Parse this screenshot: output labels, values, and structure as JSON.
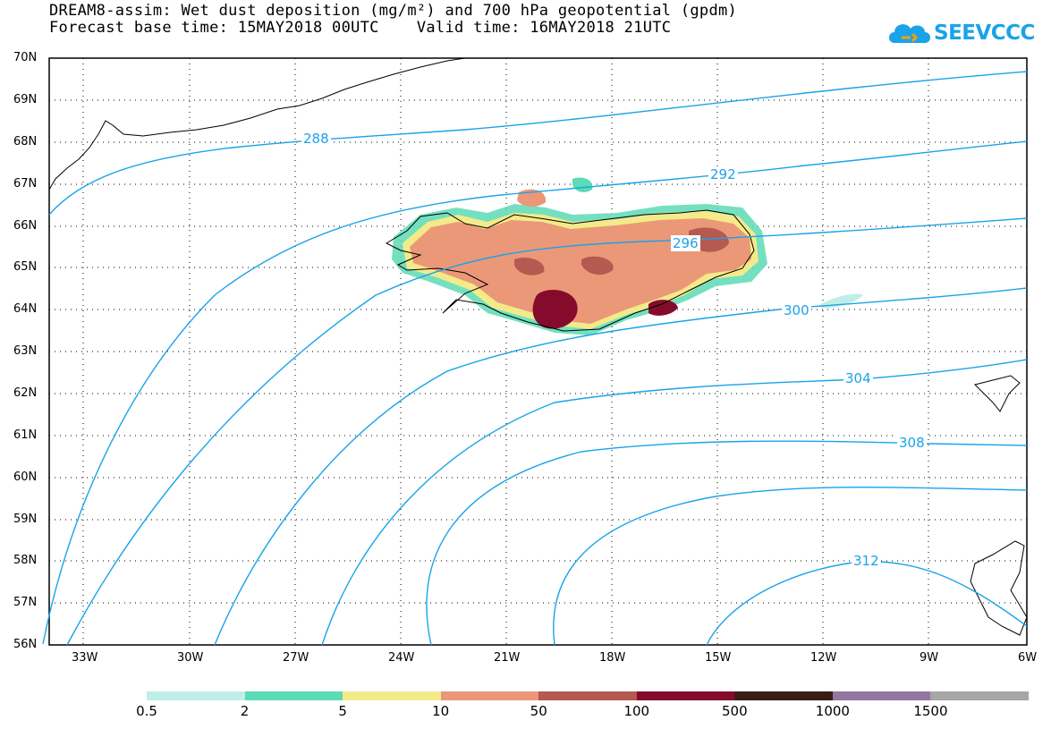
{
  "header": {
    "title_line1": "DREAM8-assim: Wet dust deposition (mg/m²) and 700 hPa geopotential (gpdm)",
    "title_line2": "Forecast base time: 15MAY2018 00UTC    Valid time: 16MAY2018 21UTC"
  },
  "logo": {
    "text": "SEEVCCC",
    "icon": "cloud-icon",
    "color": "#1aa3e8"
  },
  "map": {
    "region": "Iceland",
    "lat_ticks": [
      "70N",
      "69N",
      "68N",
      "67N",
      "66N",
      "65N",
      "64N",
      "63N",
      "62N",
      "61N",
      "60N",
      "59N",
      "58N",
      "57N",
      "56N"
    ],
    "lon_ticks": [
      "33W",
      "30W",
      "27W",
      "24W",
      "21W",
      "18W",
      "15W",
      "12W",
      "9W",
      "6W"
    ],
    "contour_labels": [
      "288",
      "292",
      "296",
      "300",
      "304",
      "308",
      "312"
    ],
    "contour_color": "#1aa3e8"
  },
  "legend": {
    "colors": [
      "#bfeee8",
      "#5cdbb4",
      "#f4ea8a",
      "#eb9878",
      "#b45a50",
      "#840b2c",
      "#3a1e14",
      "#9676a0",
      "#a6a6a6"
    ],
    "labels": [
      "0.5",
      "2",
      "5",
      "10",
      "50",
      "100",
      "500",
      "1000",
      "1500"
    ]
  }
}
